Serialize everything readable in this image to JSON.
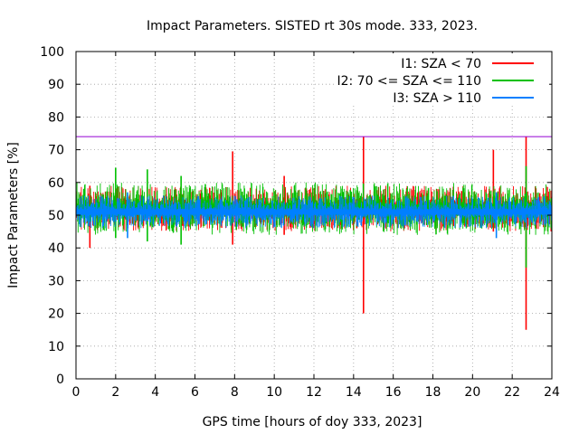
{
  "chart_data": {
    "type": "line",
    "title": "Impact Parameters. SISTED rt 30s mode. 333, 2023.",
    "xlabel": "GPS time [hours of doy 333, 2023]",
    "ylabel": "Impact Parameters [%]",
    "xlim": [
      0,
      24
    ],
    "ylim": [
      0,
      100
    ],
    "xticks": [
      0,
      2,
      4,
      6,
      8,
      10,
      12,
      14,
      16,
      18,
      20,
      22,
      24
    ],
    "yticks": [
      0,
      10,
      20,
      30,
      40,
      50,
      60,
      70,
      80,
      90,
      100
    ],
    "grid": true,
    "legend_position": "top-right",
    "reference_line": {
      "y": 74,
      "color": "#9400d3"
    },
    "series": [
      {
        "name": "I1: SZA < 70",
        "color": "#ff0000",
        "typical_low": 45,
        "typical_high": 59,
        "spikes": [
          {
            "x": 0.7,
            "low": 40,
            "high": 59
          },
          {
            "x": 7.9,
            "low": 41,
            "high": 69.5
          },
          {
            "x": 10.5,
            "low": 44,
            "high": 62
          },
          {
            "x": 14.5,
            "low": 20,
            "high": 74
          },
          {
            "x": 21.05,
            "low": 45,
            "high": 70
          },
          {
            "x": 22.7,
            "low": 15,
            "high": 74
          }
        ]
      },
      {
        "name": "I2: 70 <= SZA <= 110",
        "color": "#00c000",
        "typical_low": 44,
        "typical_high": 60,
        "spikes": [
          {
            "x": 2.0,
            "low": 43,
            "high": 64.5
          },
          {
            "x": 3.6,
            "low": 42,
            "high": 64
          },
          {
            "x": 5.3,
            "low": 41,
            "high": 62
          },
          {
            "x": 22.7,
            "low": 34,
            "high": 65
          }
        ]
      },
      {
        "name": "I3: SZA > 110",
        "color": "#0080ff",
        "typical_low": 46,
        "typical_high": 56,
        "spikes": [
          {
            "x": 2.6,
            "low": 43,
            "high": 57
          },
          {
            "x": 21.2,
            "low": 43,
            "high": 57
          }
        ]
      }
    ]
  }
}
